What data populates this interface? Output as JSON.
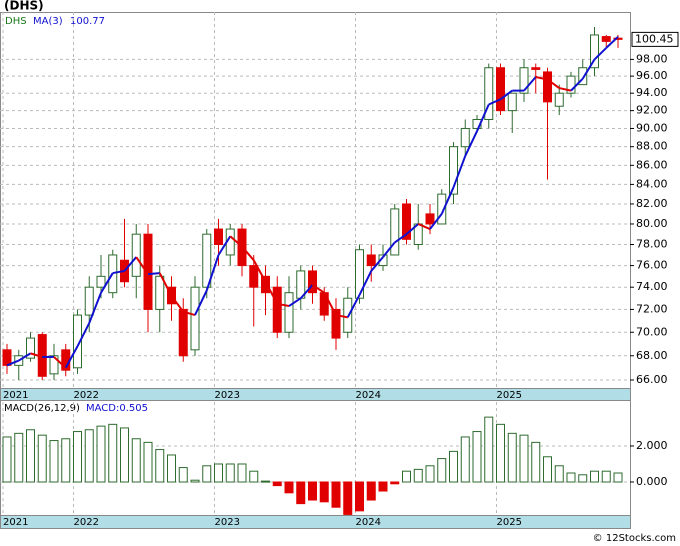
{
  "footer": "© 12Stocks.com",
  "chart_data": [
    {
      "type": "candlestick",
      "title": "(DHS)",
      "ticker": "DHS",
      "log_scale": true,
      "grid": true,
      "up_color": "#2e6b2e",
      "down_color": "#e00000",
      "categories": [
        "2021",
        null,
        null,
        null,
        null,
        null,
        "2022",
        null,
        null,
        null,
        null,
        null,
        null,
        null,
        null,
        null,
        null,
        null,
        "2023",
        null,
        null,
        null,
        null,
        null,
        null,
        null,
        null,
        null,
        null,
        null,
        "2024",
        null,
        null,
        null,
        null,
        null,
        null,
        null,
        null,
        null,
        null,
        null,
        "2025",
        null,
        null,
        null,
        null,
        null,
        null,
        null,
        null,
        null,
        null
      ],
      "open": [
        68.5,
        67.2,
        67.8,
        69.8,
        66.5,
        68.5,
        67,
        71.5,
        74,
        73.5,
        76.5,
        75,
        79,
        72,
        74,
        72,
        68.5,
        74,
        79.5,
        77,
        79.5,
        76,
        75,
        74,
        70,
        73,
        75.5,
        73.5,
        72,
        70,
        73,
        77,
        76,
        77,
        82,
        78,
        81,
        80,
        83,
        88,
        90,
        91,
        97,
        92,
        94,
        97,
        96.5,
        92.5,
        94,
        95,
        97,
        100.8,
        100.6
      ],
      "high": [
        69,
        68.5,
        70,
        70,
        69,
        69,
        72,
        75,
        77,
        77.5,
        80.5,
        80,
        80,
        76,
        75,
        73,
        75,
        79.5,
        80.5,
        80,
        80,
        77,
        76,
        75,
        75,
        76,
        76,
        74,
        73,
        74,
        78,
        78,
        78,
        82,
        82.5,
        82,
        82,
        83.5,
        88.5,
        91,
        91.5,
        97.5,
        97.5,
        94,
        98,
        97.5,
        97,
        95,
        96.5,
        98,
        102,
        101,
        101
      ],
      "low": [
        66.5,
        66,
        67.5,
        66,
        66,
        66.3,
        66.5,
        70,
        73,
        73,
        74,
        73,
        70,
        70,
        71,
        67.5,
        68,
        73,
        76,
        76,
        75,
        70.5,
        71.5,
        69.5,
        69.5,
        72,
        72.5,
        71,
        68.5,
        69.5,
        72.5,
        74.5,
        75.5,
        77,
        78,
        77.5,
        79,
        80,
        82,
        87,
        89.5,
        90,
        91.5,
        89.5,
        93,
        94,
        84.5,
        91.5,
        93.5,
        95,
        96,
        99.5,
        99.4
      ],
      "close": [
        67.2,
        68,
        69.5,
        66.3,
        68,
        66.8,
        71.5,
        74,
        75,
        77,
        74.5,
        79,
        72,
        75,
        72.5,
        68,
        74,
        79,
        78,
        79.5,
        76,
        74,
        73.5,
        70,
        73.5,
        75.5,
        73.5,
        71.5,
        69.5,
        73,
        77.5,
        76,
        77,
        81.5,
        78.5,
        80,
        80,
        83,
        88,
        90,
        91,
        97,
        92,
        94,
        97,
        96.8,
        93,
        94,
        96,
        97,
        101,
        100.2,
        100.45
      ],
      "series": [
        {
          "name": "MA(3)",
          "color": "#1010d0",
          "down_color": "#e00000",
          "values": [
            67.2,
            67.6,
            68.2,
            67.9,
            67.9,
            67.0,
            68.8,
            70.8,
            73.5,
            75.3,
            75.5,
            76.8,
            75.2,
            75.3,
            73.2,
            71.8,
            71.5,
            73.7,
            77,
            78.8,
            77.8,
            76.5,
            74.5,
            72.5,
            72.3,
            73,
            74.2,
            73.5,
            71.5,
            71.3,
            73.3,
            75.5,
            76.8,
            78.2,
            79,
            80,
            79.5,
            81,
            83.7,
            87,
            89.7,
            92.7,
            93.3,
            94.3,
            94.3,
            95.9,
            95.6,
            94.6,
            94.3,
            95.7,
            98,
            99.4,
            100.77
          ]
        }
      ],
      "ma_last": 100.77,
      "last_price": 100.45,
      "ylim": [
        65.35,
        103.9
      ],
      "yticks": [
        {
          "value": 66,
          "label": "66.00"
        },
        {
          "value": 68,
          "label": "68.00"
        },
        {
          "value": 70,
          "label": "70.00"
        },
        {
          "value": 72,
          "label": "72.00"
        },
        {
          "value": 74,
          "label": "74.00"
        },
        {
          "value": 76,
          "label": "76.00"
        },
        {
          "value": 78,
          "label": "78.00"
        },
        {
          "value": 80,
          "label": "80.00"
        },
        {
          "value": 82,
          "label": "82.00"
        },
        {
          "value": 84,
          "label": "84.00"
        },
        {
          "value": 86,
          "label": "86.00"
        },
        {
          "value": 88,
          "label": "88.00"
        },
        {
          "value": 90,
          "label": "90.00"
        },
        {
          "value": 92,
          "label": "92.00"
        },
        {
          "value": 94,
          "label": "94.00"
        },
        {
          "value": 96,
          "label": "96.00"
        },
        {
          "value": 98,
          "label": "98.00"
        }
      ]
    },
    {
      "type": "bar",
      "title": "MACD(26,12,9)",
      "legend_value": "MACD:0.505",
      "grid": true,
      "up_color": "#2e6b2e",
      "down_color": "#e00000",
      "categories": [
        "2021",
        null,
        null,
        null,
        null,
        null,
        "2022",
        null,
        null,
        null,
        null,
        null,
        null,
        null,
        null,
        null,
        null,
        null,
        "2023",
        null,
        null,
        null,
        null,
        null,
        null,
        null,
        null,
        null,
        null,
        null,
        "2024",
        null,
        null,
        null,
        null,
        null,
        null,
        null,
        null,
        null,
        null,
        null,
        "2025",
        null,
        null,
        null,
        null,
        null,
        null,
        null,
        null,
        null,
        null
      ],
      "values": [
        2.5,
        2.7,
        2.9,
        2.6,
        2.3,
        2.4,
        2.8,
        2.9,
        3.1,
        3.2,
        3.0,
        2.4,
        2.2,
        1.8,
        1.5,
        0.8,
        0.1,
        0.9,
        1.0,
        1.0,
        1.0,
        0.6,
        0.05,
        -0.2,
        -0.6,
        -1.2,
        -1.0,
        -1.1,
        -1.4,
        -1.8,
        -1.6,
        -1.0,
        -0.5,
        -0.1,
        0.6,
        0.7,
        0.9,
        1.3,
        1.7,
        2.5,
        2.8,
        3.6,
        3.2,
        2.7,
        2.6,
        2.2,
        1.4,
        0.9,
        0.5,
        0.4,
        0.6,
        0.6,
        0.5
      ],
      "ylim": [
        -1.72,
        4.44
      ],
      "yticks": [
        {
          "value": 0,
          "label": "0.000"
        },
        {
          "value": 2,
          "label": "2.000"
        }
      ]
    }
  ]
}
